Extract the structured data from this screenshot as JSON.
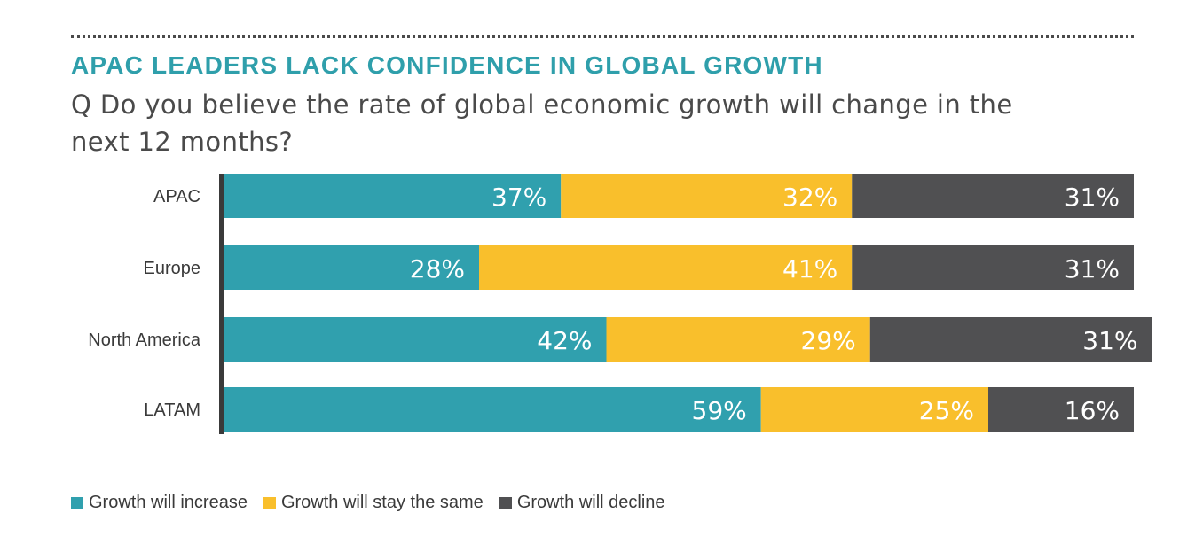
{
  "chart_data": {
    "type": "bar",
    "orientation": "horizontal",
    "stacked": true,
    "title": "APAC LEADERS LACK CONFIDENCE IN GLOBAL GROWTH",
    "subtitle": "Q Do you believe the rate of global economic growth will change in the next 12 months?",
    "categories": [
      "APAC",
      "Europe",
      "North America",
      "LATAM"
    ],
    "series": [
      {
        "name": "Growth will increase",
        "values": [
          37,
          28,
          42,
          59
        ],
        "labels": [
          "37%",
          "28%",
          "42%",
          "59%"
        ],
        "color": "#30a0ae"
      },
      {
        "name": "Growth will stay the same",
        "values": [
          32,
          41,
          29,
          25
        ],
        "labels": [
          "32%",
          "41%",
          "29%",
          "25%"
        ],
        "color": "#f9bf2c"
      },
      {
        "name": "Growth will decline",
        "values": [
          31,
          31,
          31,
          16
        ],
        "labels": [
          "31%",
          "31%",
          "31%",
          "16%"
        ],
        "color": "#505052"
      }
    ],
    "xlim": [
      0,
      100
    ],
    "grid": false,
    "legend_position": "bottom-left"
  },
  "colors": {
    "title": "#2f9fab",
    "axis": "#3a3a3a",
    "label_text": "#ffffff"
  }
}
